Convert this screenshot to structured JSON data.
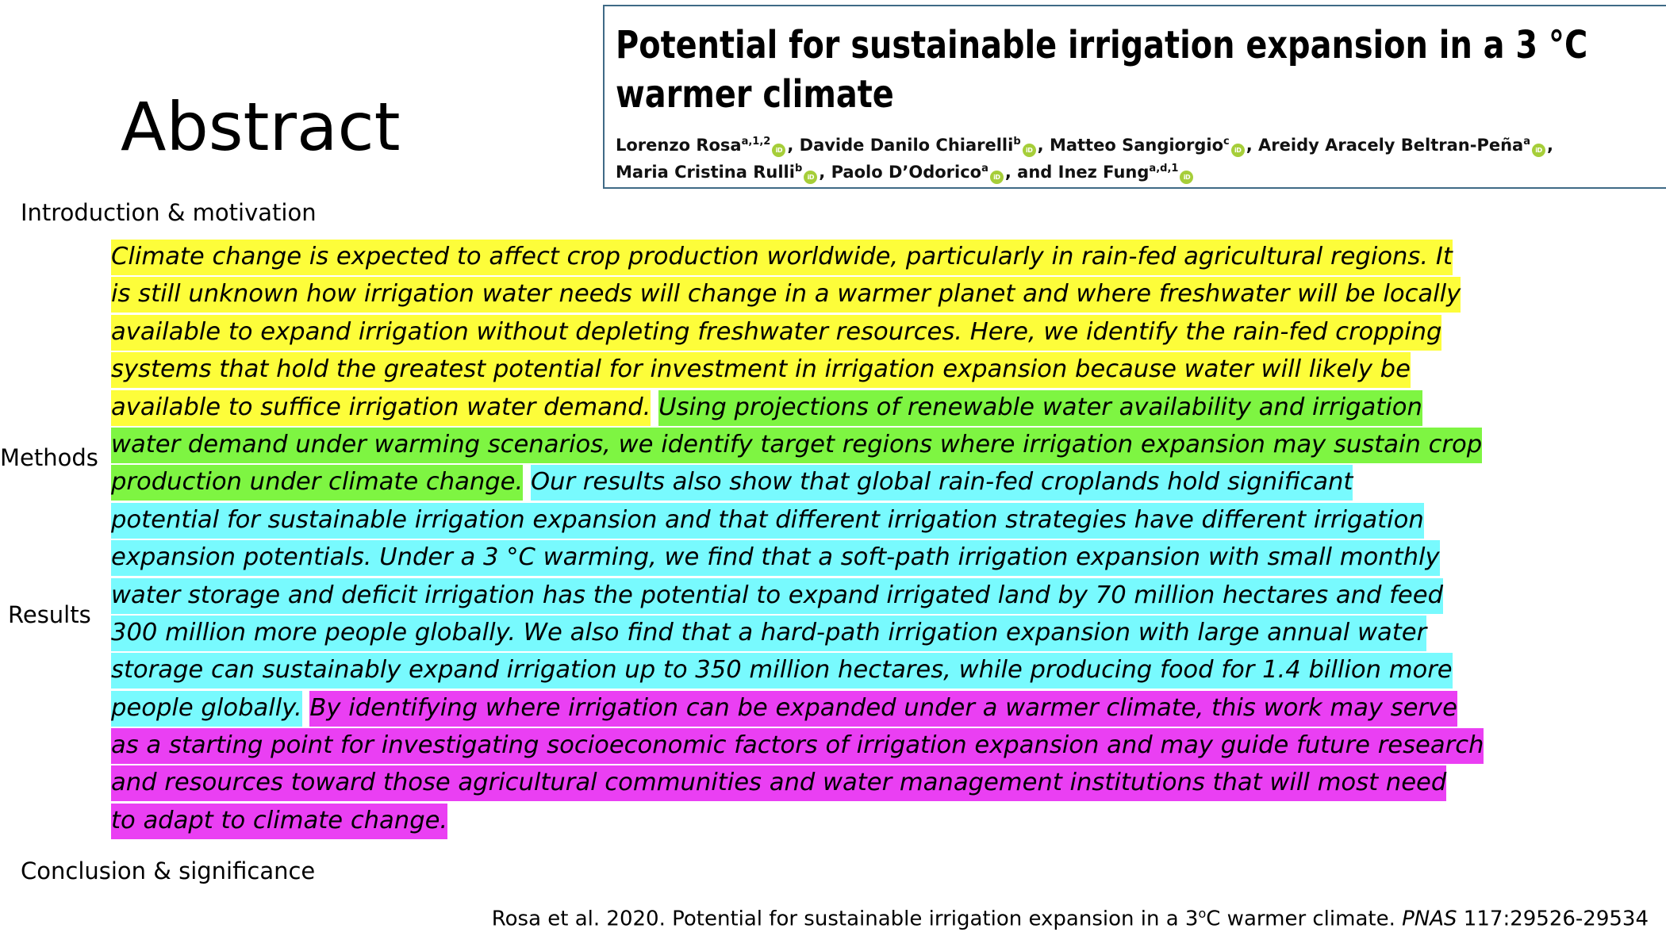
{
  "slide": {
    "title": "Abstract"
  },
  "paper": {
    "title_line1": "Potential for sustainable irrigation expansion in a 3 °C",
    "title_line2": "warmer climate",
    "authors": [
      {
        "name": "Lorenzo Rosa",
        "sup": "a,1,2",
        "sep": ", "
      },
      {
        "name": "Davide Danilo Chiarelli",
        "sup": "b",
        "sep": ", "
      },
      {
        "name": "Matteo Sangiorgio",
        "sup": "c",
        "sep": ", "
      },
      {
        "name": "Areidy Aracely Beltran-Peña",
        "sup": "a",
        "sep": ","
      },
      {
        "name": "Maria Cristina Rulli",
        "sup": "b",
        "sep": ", "
      },
      {
        "name": "Paolo D’Odorico",
        "sup": "a",
        "sep": ", and "
      },
      {
        "name": "Inez Fung",
        "sup": "a,d,1",
        "sep": ""
      }
    ],
    "orcid_icon": "orcid-icon",
    "orcid_text": "iD"
  },
  "labels": {
    "introduction": "Introduction & motivation",
    "methods": "Methods",
    "results": "Results",
    "conclusion": "Conclusion & significance"
  },
  "abstract": {
    "lines": [
      [
        {
          "t": "intro",
          "text": "Climate change is expected to affect crop production worldwide, particularly in rain-fed agricultural regions. It"
        }
      ],
      [
        {
          "t": "intro",
          "text": "is still unknown how irrigation water needs will change in a warmer planet and where freshwater will be locally"
        }
      ],
      [
        {
          "t": "intro",
          "text": "available to expand irrigation without depleting freshwater resources. Here, we identify the rain-fed cropping"
        }
      ],
      [
        {
          "t": "intro",
          "text": "systems that hold the greatest potential for investment in irrigation expansion because water will likely be"
        }
      ],
      [
        {
          "t": "intro",
          "text": "available to suffice irrigation water demand."
        },
        {
          "t": "plain",
          "text": " "
        },
        {
          "t": "methods",
          "text": "Using projections of renewable water availability and irrigation"
        }
      ],
      [
        {
          "t": "methods",
          "text": "water demand under warming scenarios, we identify target regions where irrigation expansion may sustain crop"
        }
      ],
      [
        {
          "t": "methods",
          "text": "production under climate change."
        },
        {
          "t": "plain",
          "text": " "
        },
        {
          "t": "results",
          "text": "Our results also show that global rain-fed croplands hold significant"
        }
      ],
      [
        {
          "t": "results",
          "text": "potential for sustainable irrigation expansion and that different irrigation strategies have different irrigation"
        }
      ],
      [
        {
          "t": "results",
          "text": "expansion potentials. Under a 3 °C warming, we find that a soft-path irrigation expansion with small monthly"
        }
      ],
      [
        {
          "t": "results",
          "text": "water storage and deficit irrigation has the potential to expand irrigated land by 70 million hectares and feed"
        }
      ],
      [
        {
          "t": "results",
          "text": "300 million more people globally. We also find that a hard-path irrigation expansion with large annual water"
        }
      ],
      [
        {
          "t": "results",
          "text": "storage can sustainably expand irrigation up to 350 million hectares, while producing food for 1.4 billion more"
        }
      ],
      [
        {
          "t": "results",
          "text": "people globally."
        },
        {
          "t": "plain",
          "text": " "
        },
        {
          "t": "conclusion",
          "text": "By identifying where irrigation can be expanded under a warmer climate, this work may serve"
        }
      ],
      [
        {
          "t": "conclusion",
          "text": "as a starting point for investigating socioeconomic factors of irrigation expansion and may guide future research"
        }
      ],
      [
        {
          "t": "conclusion",
          "text": "and resources toward those agricultural communities and water management institutions that will most need"
        }
      ],
      [
        {
          "t": "conclusion",
          "text": "to adapt to climate change."
        }
      ]
    ],
    "colors": {
      "intro": "#fdfd3a",
      "methods": "#7ef542",
      "results": "#78fafe",
      "conclusion": "#ea3ff3"
    }
  },
  "citation": {
    "prefix": "Rosa et al. 2020. Potential for sustainable irrigation expansion in a 3",
    "degree_sup": "o",
    "middle": "C warmer climate. ",
    "journal": "PNAS",
    "suffix": " 117:29526-29534"
  }
}
